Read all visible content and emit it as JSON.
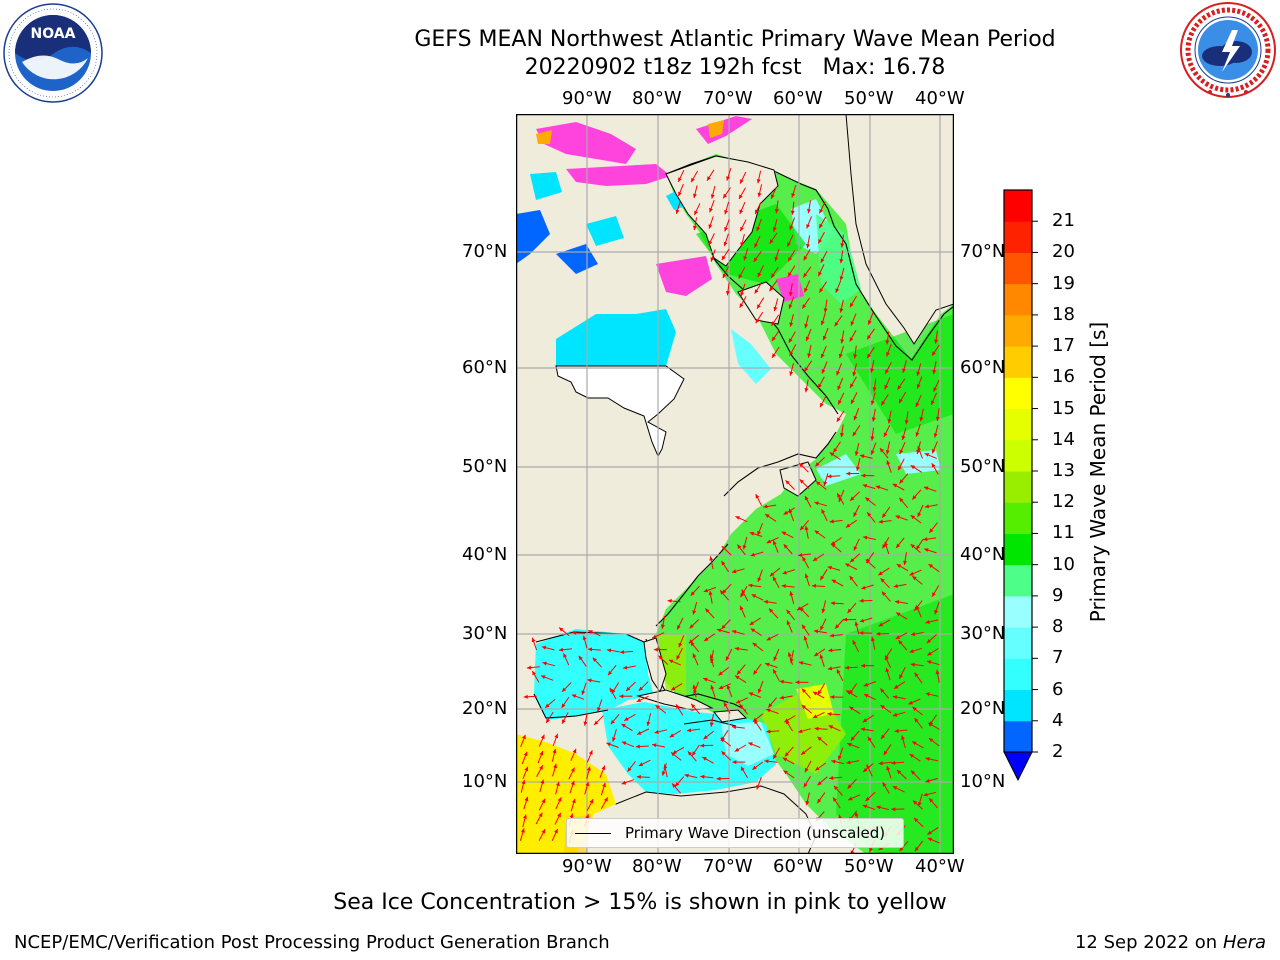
{
  "title": {
    "line1": "GEFS MEAN Northwest Atlantic Primary Wave Mean Period",
    "line2": "20220902 t18z 192h fcst   Max: 16.78"
  },
  "logos": {
    "noaa": {
      "center_text": "NOAA",
      "ring_text": "NATIONAL OCEANIC AND ATMOSPHERIC ADMINISTRATION · U.S. DEPARTMENT OF COMMERCE"
    },
    "nws": {
      "ring_text": "NATIONAL WEATHER SERVICE"
    }
  },
  "map": {
    "lon_labels": [
      "90°W",
      "80°W",
      "70°W",
      "60°W",
      "50°W",
      "40°W"
    ],
    "lat_labels": [
      "70°N",
      "60°N",
      "50°N",
      "40°N",
      "30°N",
      "20°N",
      "10°N"
    ],
    "legend_label": "Primary Wave Direction (unscaled)",
    "land_color": "#efecdc",
    "arrow_color": "#ff0000"
  },
  "colorbar": {
    "label": "Primary Wave Mean Period [s]",
    "ticks": [
      "2",
      "4",
      "6",
      "7",
      "8",
      "9",
      "10",
      "11",
      "12",
      "13",
      "14",
      "15",
      "16",
      "17",
      "18",
      "19",
      "20",
      "21"
    ],
    "colors": [
      "#0066ff",
      "#00e5ff",
      "#33ffff",
      "#66ffff",
      "#99ffff",
      "#4dff88",
      "#00e600",
      "#55ee00",
      "#99ee00",
      "#ccff00",
      "#e6ff00",
      "#ffff00",
      "#ffcc00",
      "#ffaa00",
      "#ff8800",
      "#ff5500",
      "#ff2200",
      "#ff0000"
    ],
    "extend_color": "#0000ff"
  },
  "footer": {
    "note": "Sea Ice Concentration > 15% is shown in pink to yellow",
    "credit": "NCEP/EMC/Verification Post Processing Product Generation Branch",
    "date": "12 Sep 2022 on",
    "host": "Hera"
  }
}
